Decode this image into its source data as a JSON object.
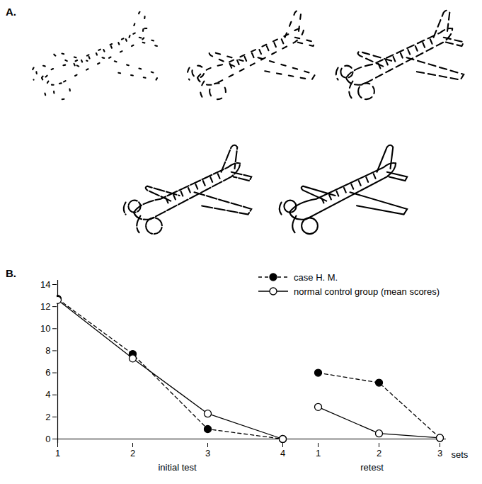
{
  "panel_labels": [
    "A.",
    "B."
  ],
  "chart_data": [
    {
      "type": "line",
      "xlabel": "initial test",
      "categories": [
        "1",
        "2",
        "3",
        "4"
      ],
      "ylim": [
        0,
        14
      ],
      "yticks": [
        0,
        2,
        4,
        6,
        8,
        10,
        12,
        14
      ],
      "legend": "top-right",
      "series": [
        {
          "name": "case H. M.",
          "color": "#000000",
          "line_style": "dashed",
          "marker": "filled circle",
          "values": [
            12.7,
            7.7,
            0.9,
            0
          ]
        },
        {
          "name": "normal control group (mean scores)",
          "color": "#000000",
          "line_style": "solid",
          "marker": "open circle",
          "values": [
            12.6,
            7.3,
            2.3,
            0
          ]
        }
      ]
    },
    {
      "type": "line",
      "xlabel": "retest",
      "annotation": "sets",
      "categories": [
        "1",
        "2",
        "3"
      ],
      "ylim": [
        0,
        14
      ],
      "tick_labels": "x",
      "series": [
        {
          "name": "case H. M.",
          "color": "#000000",
          "line_style": "dashed",
          "marker": "filled circle",
          "values": [
            6,
            5.1,
            0.1
          ]
        },
        {
          "name": "normal control group (mean scores)",
          "color": "#000000",
          "line_style": "solid",
          "marker": "open circle",
          "values": [
            2.9,
            0.5,
            0.1
          ]
        }
      ]
    }
  ]
}
